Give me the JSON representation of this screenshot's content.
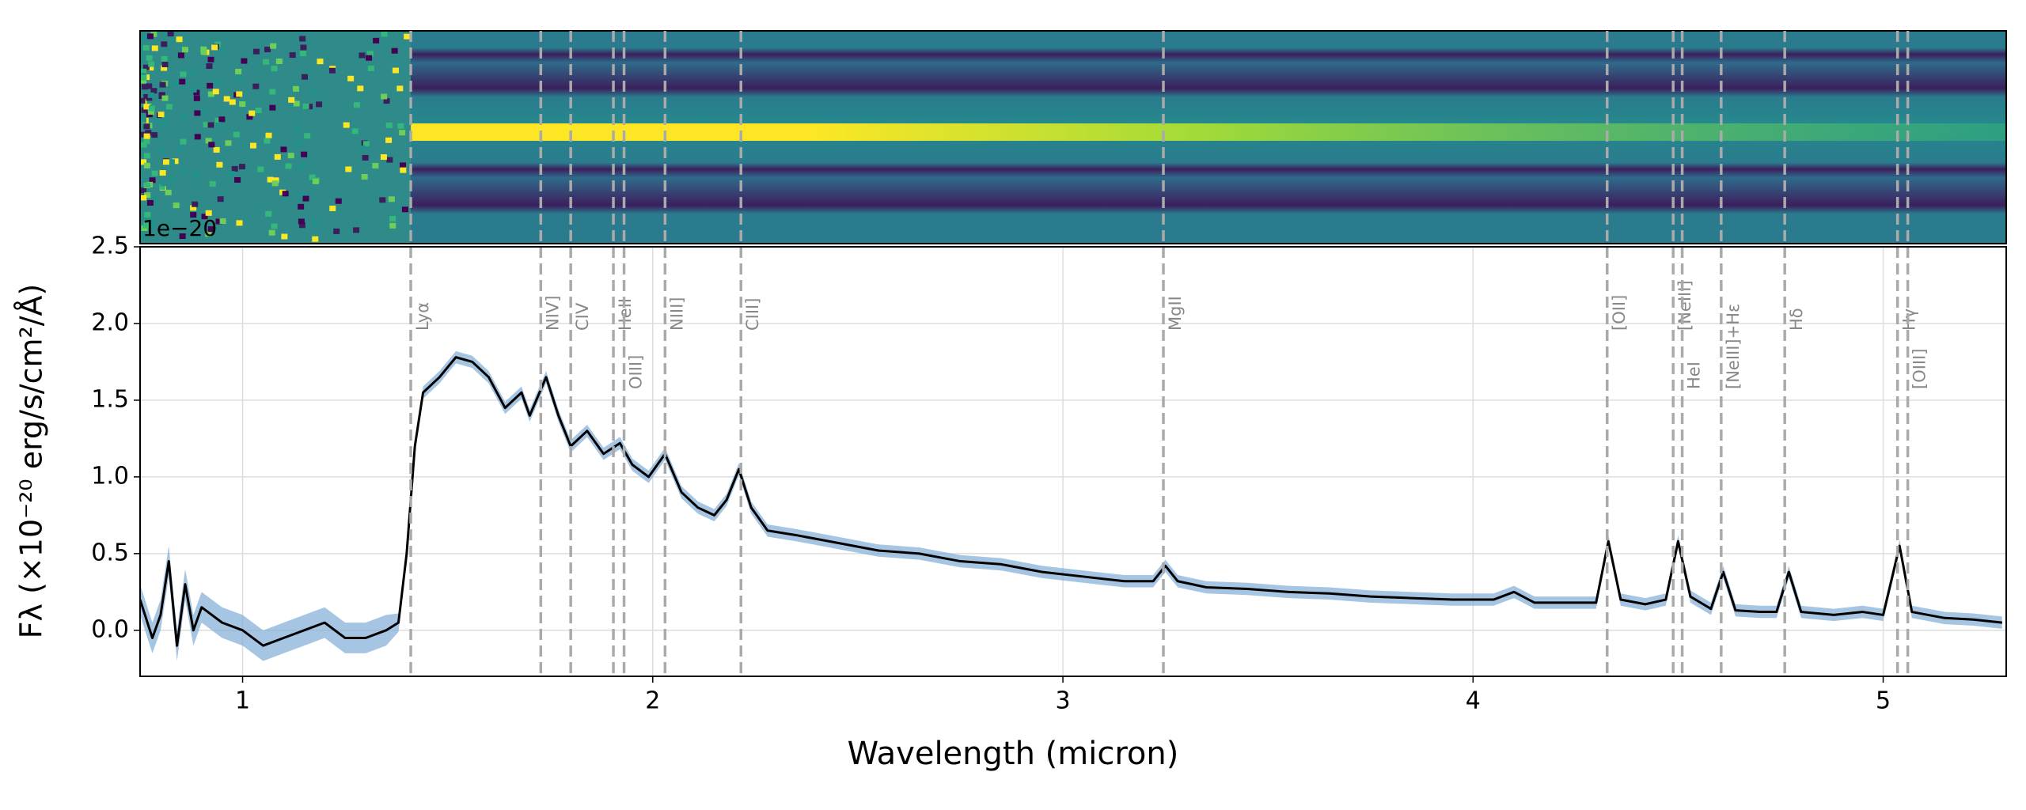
{
  "chart_data": {
    "type": "line",
    "xlabel": "Wavelength (micron)",
    "ylabel": "Fλ (×10⁻²⁰ erg/s/cm²/Å)",
    "offset_text": "1e−20",
    "xlim": [
      0.75,
      5.3
    ],
    "ylim": [
      -0.3,
      2.5
    ],
    "xticks": [
      1,
      2,
      3,
      4,
      5
    ],
    "yticks": [
      {
        "value": 0,
        "label": "0.0"
      },
      0.5,
      {
        "value": 1,
        "label": "1.0"
      },
      1.5,
      {
        "value": 2,
        "label": "2.0"
      },
      2.5
    ],
    "grid": true,
    "x": [
      0.75,
      0.78,
      0.8,
      0.82,
      0.84,
      0.86,
      0.88,
      0.9,
      0.95,
      1.0,
      1.05,
      1.1,
      1.15,
      1.2,
      1.25,
      1.3,
      1.35,
      1.38,
      1.4,
      1.42,
      1.44,
      1.48,
      1.52,
      1.56,
      1.6,
      1.64,
      1.68,
      1.7,
      1.74,
      1.77,
      1.8,
      1.84,
      1.88,
      1.92,
      1.95,
      1.99,
      2.03,
      2.07,
      2.11,
      2.15,
      2.18,
      2.21,
      2.24,
      2.28,
      2.35,
      2.45,
      2.55,
      2.65,
      2.75,
      2.85,
      2.95,
      3.05,
      3.15,
      3.22,
      3.25,
      3.28,
      3.35,
      3.45,
      3.55,
      3.65,
      3.75,
      3.85,
      3.95,
      4.05,
      4.1,
      4.15,
      4.25,
      4.3,
      4.33,
      4.36,
      4.42,
      4.47,
      4.5,
      4.53,
      4.58,
      4.61,
      4.64,
      4.7,
      4.74,
      4.77,
      4.8,
      4.88,
      4.95,
      5.0,
      5.04,
      5.07,
      5.15,
      5.22,
      5.29
    ],
    "series": [
      {
        "color": "#000000",
        "band_color": "#7fadd6",
        "values": [
          0.2,
          -0.05,
          0.1,
          0.45,
          -0.1,
          0.3,
          0.0,
          0.15,
          0.05,
          0.0,
          -0.1,
          -0.05,
          0.0,
          0.05,
          -0.05,
          -0.05,
          0.0,
          0.05,
          0.5,
          1.2,
          1.55,
          1.65,
          1.78,
          1.75,
          1.65,
          1.45,
          1.55,
          1.4,
          1.65,
          1.4,
          1.2,
          1.3,
          1.15,
          1.22,
          1.08,
          1.0,
          1.15,
          0.9,
          0.8,
          0.75,
          0.85,
          1.05,
          0.8,
          0.65,
          0.62,
          0.57,
          0.52,
          0.5,
          0.45,
          0.43,
          0.38,
          0.35,
          0.32,
          0.32,
          0.42,
          0.32,
          0.28,
          0.27,
          0.25,
          0.24,
          0.22,
          0.21,
          0.2,
          0.2,
          0.25,
          0.18,
          0.18,
          0.18,
          0.58,
          0.2,
          0.17,
          0.2,
          0.58,
          0.22,
          0.14,
          0.38,
          0.13,
          0.12,
          0.12,
          0.38,
          0.12,
          0.1,
          0.12,
          0.1,
          0.55,
          0.12,
          0.08,
          0.07,
          0.05
        ],
        "errors": [
          0.1,
          0.1,
          0.1,
          0.1,
          0.1,
          0.1,
          0.1,
          0.1,
          0.1,
          0.1,
          0.1,
          0.1,
          0.1,
          0.1,
          0.1,
          0.1,
          0.1,
          0.06,
          0.04,
          0.04,
          0.04,
          0.04,
          0.04,
          0.04,
          0.04,
          0.04,
          0.04,
          0.04,
          0.04,
          0.04,
          0.04,
          0.04,
          0.04,
          0.04,
          0.04,
          0.04,
          0.04,
          0.04,
          0.04,
          0.04,
          0.04,
          0.04,
          0.04,
          0.04,
          0.04,
          0.04,
          0.04,
          0.04,
          0.04,
          0.04,
          0.04,
          0.04,
          0.04,
          0.04,
          0.04,
          0.04,
          0.04,
          0.04,
          0.04,
          0.04,
          0.04,
          0.04,
          0.04,
          0.04,
          0.04,
          0.04,
          0.04,
          0.04,
          0.04,
          0.04,
          0.04,
          0.04,
          0.04,
          0.04,
          0.04,
          0.04,
          0.04,
          0.04,
          0.04,
          0.04,
          0.04,
          0.04,
          0.04,
          0.04,
          0.04,
          0.04,
          0.04,
          0.04,
          0.04
        ]
      }
    ],
    "lines": [
      {
        "label": "Lyα",
        "x": 1.41
      },
      {
        "label": "NIV]",
        "x": 1.727
      },
      {
        "label": "CIV",
        "x": 1.8
      },
      {
        "label": "HeII",
        "x": 1.904
      },
      {
        "label": "OIII]",
        "x": 1.93
      },
      {
        "label": "NIII]",
        "x": 2.03
      },
      {
        "label": "CIII]",
        "x": 2.215
      },
      {
        "label": "MgII",
        "x": 3.245
      },
      {
        "label": "[OII]",
        "x": 4.327
      },
      {
        "label": "[NeIII]",
        "x": 4.488
      },
      {
        "label": "HeI",
        "x": 4.51
      },
      {
        "label": "[NeIII]+Hε",
        "x": 4.605
      },
      {
        "label": "Hδ",
        "x": 4.76
      },
      {
        "label": "Hγ",
        "x": 5.035
      },
      {
        "label": "[OIII]",
        "x": 5.06
      }
    ]
  }
}
